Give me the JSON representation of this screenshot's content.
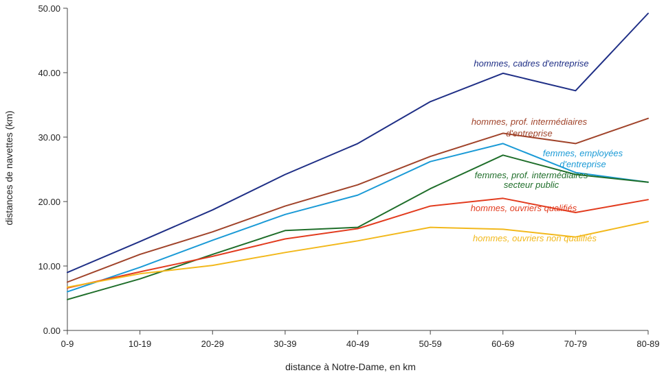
{
  "chart_data": {
    "type": "line",
    "title": "",
    "xlabel": "distance à Notre-Dame, en km",
    "ylabel": "distances de navettes (km)",
    "categories": [
      "0-9",
      "10-19",
      "20-29",
      "30-39",
      "40-49",
      "50-59",
      "60-69",
      "70-79",
      "80-89"
    ],
    "ylim": [
      0,
      50
    ],
    "yticks": [
      "0.00",
      "10.00",
      "20.00",
      "30.00",
      "40.00",
      "50.00"
    ],
    "grid": false,
    "legend": "inline labels",
    "series": [
      {
        "name": "hommes, cadres d'entreprise",
        "label_lines": [
          "hommes, cadres d'entreprise"
        ],
        "color": "#1f2f86",
        "values": [
          9.0,
          13.8,
          18.7,
          24.2,
          29.0,
          35.5,
          39.9,
          37.2,
          49.2
        ]
      },
      {
        "name": "hommes, prof. intermédiaires d'entreprise",
        "label_lines": [
          "hommes, prof. intermédiaires",
          "d'entreprise"
        ],
        "color": "#a0432a",
        "values": [
          7.5,
          11.8,
          15.3,
          19.3,
          22.6,
          27.0,
          30.6,
          29.0,
          32.9
        ]
      },
      {
        "name": "femmes, employées d'entreprise",
        "label_lines": [
          "femmes, employées",
          "d'entreprise"
        ],
        "color": "#1a9ad6",
        "values": [
          6.0,
          9.8,
          14.0,
          18.0,
          21.0,
          26.2,
          29.0,
          24.5,
          23.0
        ]
      },
      {
        "name": "femmes, prof. intermédiaires secteur public",
        "label_lines": [
          "femmes, prof. intermédiaires",
          "secteur public"
        ],
        "color": "#1f6e2a",
        "values": [
          4.8,
          8.0,
          11.8,
          15.5,
          16.0,
          22.0,
          27.2,
          24.2,
          23.0
        ]
      },
      {
        "name": "hommes, ouvriers qualifiés",
        "label_lines": [
          "hommes, ouvriers qualifiés"
        ],
        "color": "#e23b1e",
        "values": [
          6.6,
          9.1,
          11.5,
          14.2,
          15.8,
          19.3,
          20.5,
          18.3,
          20.3
        ]
      },
      {
        "name": "hommes, ouvriers non qualifiés",
        "label_lines": [
          "hommes, ouvriers non qualifiés"
        ],
        "color": "#f2b81b",
        "values": [
          6.7,
          8.8,
          10.1,
          12.1,
          13.9,
          16.0,
          15.7,
          14.5,
          16.9
        ]
      }
    ]
  }
}
